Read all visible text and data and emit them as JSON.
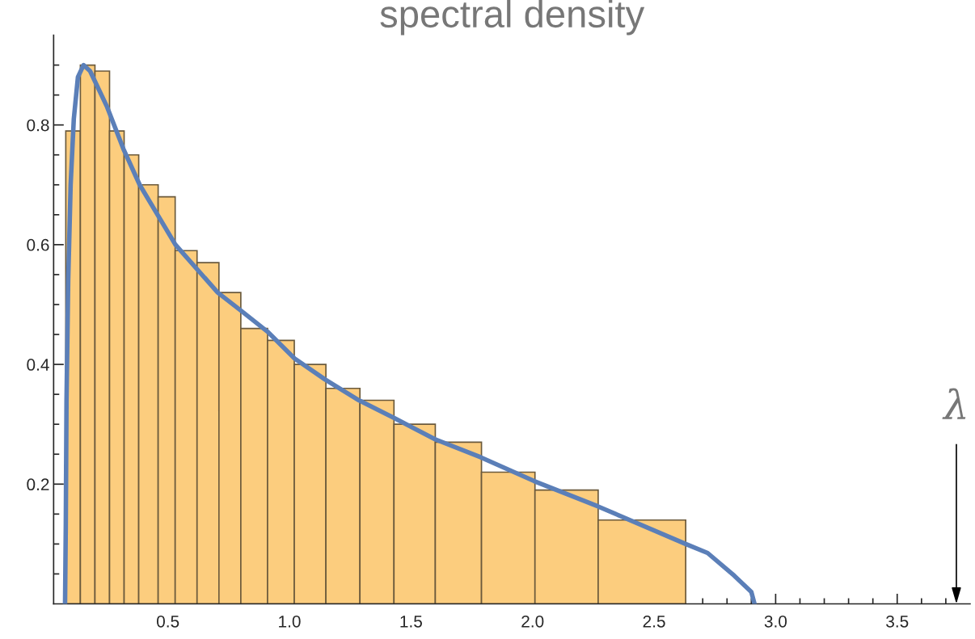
{
  "chart_data": {
    "type": "histogram",
    "title": "spectral density",
    "bins": [
      0.08,
      0.14,
      0.2,
      0.26,
      0.32,
      0.38,
      0.46,
      0.53,
      0.62,
      0.71,
      0.8,
      0.91,
      1.02,
      1.15,
      1.29,
      1.43,
      1.6,
      1.79,
      2.01,
      2.27,
      2.63
    ],
    "values": [
      0.79,
      0.9,
      0.89,
      0.79,
      0.75,
      0.7,
      0.68,
      0.59,
      0.57,
      0.52,
      0.46,
      0.44,
      0.4,
      0.36,
      0.34,
      0.3,
      0.27,
      0.22,
      0.19,
      0.14
    ],
    "color": "#fccd7e",
    "series": [
      {
        "type": "line",
        "color": "#5b7fb8",
        "x": [
          0.077,
          0.08,
          0.083,
          0.09,
          0.1,
          0.113,
          0.13,
          0.153,
          0.18,
          0.25,
          0.317,
          0.384,
          0.531,
          0.705,
          0.8,
          0.909,
          1.021,
          1.146,
          1.286,
          1.433,
          1.599,
          1.786,
          2.007,
          2.268,
          2.63,
          2.72,
          2.83,
          2.9,
          2.913
        ],
        "values": [
          0,
          0.13,
          0.34,
          0.54,
          0.7,
          0.81,
          0.88,
          0.9,
          0.89,
          0.83,
          0.76,
          0.7,
          0.6,
          0.52,
          0.49,
          0.455,
          0.41,
          0.375,
          0.34,
          0.31,
          0.275,
          0.245,
          0.205,
          0.163,
          0.1,
          0.085,
          0.047,
          0.02,
          0
        ]
      }
    ],
    "xlim": [
      0.03,
      3.8
    ],
    "ylim": [
      0,
      0.95
    ],
    "xticks": [
      {
        "value": 0.1,
        "label": null
      },
      {
        "value": 0.2,
        "label": null
      },
      {
        "value": 0.3,
        "label": null
      },
      {
        "value": 0.4,
        "label": null
      },
      {
        "value": 0.5,
        "label": "0.5"
      },
      {
        "value": 0.6,
        "label": null
      },
      {
        "value": 0.7,
        "label": null
      },
      {
        "value": 0.8,
        "label": null
      },
      {
        "value": 0.9,
        "label": null
      },
      {
        "value": 1.0,
        "label": "1.0"
      },
      {
        "value": 1.1,
        "label": null
      },
      {
        "value": 1.2,
        "label": null
      },
      {
        "value": 1.3,
        "label": null
      },
      {
        "value": 1.4,
        "label": null
      },
      {
        "value": 1.5,
        "label": "1.5"
      },
      {
        "value": 1.6,
        "label": null
      },
      {
        "value": 1.7,
        "label": null
      },
      {
        "value": 1.8,
        "label": null
      },
      {
        "value": 1.9,
        "label": null
      },
      {
        "value": 2.0,
        "label": "2.0"
      },
      {
        "value": 2.1,
        "label": null
      },
      {
        "value": 2.2,
        "label": null
      },
      {
        "value": 2.3,
        "label": null
      },
      {
        "value": 2.4,
        "label": null
      },
      {
        "value": 2.5,
        "label": "2.5"
      },
      {
        "value": 2.6,
        "label": null
      },
      {
        "value": 2.7,
        "label": null
      },
      {
        "value": 2.8,
        "label": null
      },
      {
        "value": 2.9,
        "label": null
      },
      {
        "value": 3.0,
        "label": "3.0"
      },
      {
        "value": 3.1,
        "label": null
      },
      {
        "value": 3.2,
        "label": null
      },
      {
        "value": 3.3,
        "label": null
      },
      {
        "value": 3.4,
        "label": null
      },
      {
        "value": 3.5,
        "label": "3.5"
      },
      {
        "value": 3.6,
        "label": null
      },
      {
        "value": 3.7,
        "label": null
      }
    ],
    "yticks": [
      {
        "value": 0.05,
        "label": null
      },
      {
        "value": 0.1,
        "label": null
      },
      {
        "value": 0.15,
        "label": null
      },
      0.2,
      {
        "value": 0.25,
        "label": null
      },
      {
        "value": 0.3,
        "label": null
      },
      {
        "value": 0.35,
        "label": null
      },
      0.4,
      {
        "value": 0.45,
        "label": null
      },
      {
        "value": 0.5,
        "label": null
      },
      {
        "value": 0.55,
        "label": null
      },
      0.6,
      {
        "value": 0.65,
        "label": null
      },
      {
        "value": 0.7,
        "label": null
      },
      {
        "value": 0.75,
        "label": null
      },
      0.8,
      {
        "value": 0.85,
        "label": null
      },
      {
        "value": 0.9,
        "label": null
      }
    ],
    "annotations": [
      "λ"
    ],
    "grid": false
  }
}
